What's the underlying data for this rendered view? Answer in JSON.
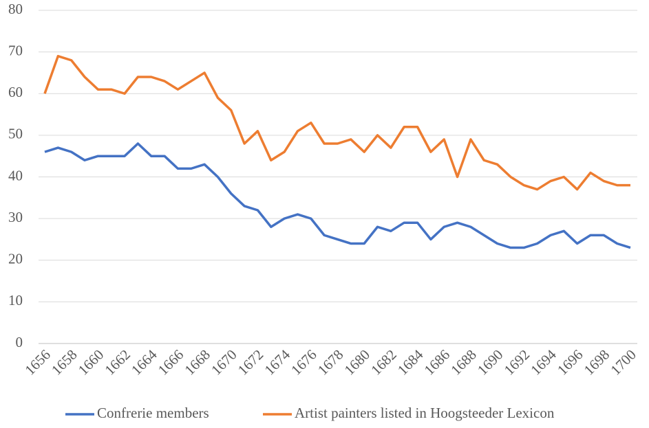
{
  "chart_data": {
    "type": "line",
    "categories": [
      "1656",
      null,
      "1658",
      null,
      "1660",
      null,
      "1662",
      null,
      "1664",
      null,
      "1666",
      null,
      "1668",
      null,
      "1670",
      null,
      "1672",
      null,
      "1674",
      null,
      "1676",
      null,
      "1678",
      null,
      "1680",
      null,
      "1682",
      null,
      "1684",
      null,
      "1686",
      null,
      "1688",
      null,
      "1690",
      null,
      "1692",
      null,
      "1694",
      null,
      "1696",
      null,
      "1698",
      null,
      "1700"
    ],
    "series": [
      {
        "name": "Confrerie members",
        "color": "#4472c4",
        "values": [
          46,
          47,
          46,
          44,
          45,
          45,
          45,
          48,
          45,
          45,
          42,
          42,
          43,
          40,
          36,
          33,
          32,
          28,
          30,
          31,
          30,
          26,
          25,
          24,
          24,
          28,
          27,
          29,
          29,
          25,
          28,
          29,
          28,
          26,
          24,
          23,
          23,
          24,
          26,
          27,
          24,
          26,
          26,
          24,
          23
        ]
      },
      {
        "name": "Artist painters listed in Hoogsteeder Lexicon",
        "color": "#ed7d31",
        "values": [
          60,
          69,
          68,
          64,
          61,
          61,
          60,
          64,
          64,
          63,
          61,
          63,
          65,
          59,
          56,
          48,
          51,
          44,
          46,
          51,
          53,
          48,
          48,
          49,
          46,
          50,
          47,
          52,
          52,
          46,
          49,
          40,
          49,
          44,
          43,
          40,
          38,
          37,
          39,
          40,
          37,
          41,
          39,
          38,
          38
        ]
      }
    ],
    "ylim": [
      0,
      80
    ],
    "yticks": [
      0,
      10,
      20,
      30,
      40,
      50,
      60,
      70,
      80
    ],
    "grid": true,
    "legend": "bottom"
  }
}
